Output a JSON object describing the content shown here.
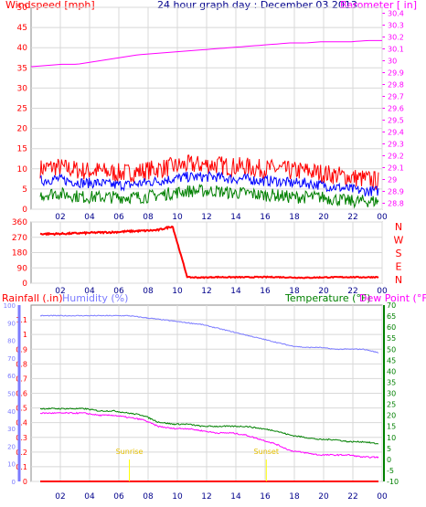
{
  "header": {
    "title": "24 hour graph day : December 03 2013",
    "left_label": "Windspeed [mph]",
    "right_label": "Barometer [ in]"
  },
  "colors": {
    "wind": "#ff0000",
    "gust": "#ff0000",
    "avg": "#0000ff",
    "green": "#008000",
    "baro": "#ff00ff",
    "dir": "#ff0000",
    "humidity": "#7b7bff",
    "temperature": "#008000",
    "dewpoint": "#ff00ff",
    "rain": "#ff0000",
    "grid": "#d8d8d8",
    "axis_blue": "#00008b"
  },
  "panel_bottom": {
    "rain_label": "Rainfall (.in)",
    "humidity_label": "Humidity (%)",
    "temp_label": "Temperature (°F)",
    "dew_label": "Dew Point (°F)"
  },
  "markers": [
    "Sunrise",
    "Sunset"
  ],
  "chart_data": [
    {
      "type": "line",
      "x_ticks": [
        "02",
        "04",
        "06",
        "08",
        "10",
        "12",
        "14",
        "16",
        "18",
        "20",
        "22",
        "00"
      ],
      "y_left_ticks": [
        "0",
        "5",
        "10",
        "15",
        "20",
        "25",
        "30",
        "35",
        "40",
        "45",
        "50"
      ],
      "ylim_left": [
        0,
        50
      ],
      "y_right_ticks": [
        "28.8",
        "28.9",
        "29",
        "29.1",
        "29.2",
        "29.3",
        "29.4",
        "29.5",
        "29.6",
        "29.7",
        "29.8",
        "29.9",
        "30",
        "30.1",
        "30.2",
        "30.3",
        "30.4"
      ],
      "ylim_right": [
        28.75,
        30.45
      ],
      "series": [
        {
          "axis": "left",
          "values": [
            10,
            10.5,
            10,
            9.5,
            9.5,
            9,
            9,
            9.5,
            10,
            10.5,
            11,
            11,
            11,
            10.5,
            10.5,
            10,
            10,
            9.5,
            9.5,
            9,
            8.5,
            8,
            7.5,
            7
          ]
        },
        {
          "axis": "left",
          "values": [
            7,
            7.5,
            7,
            6.5,
            6.5,
            6,
            6,
            6.5,
            7,
            7.5,
            8,
            8,
            8,
            7.5,
            7.5,
            7,
            7,
            6.5,
            6.5,
            6,
            5.5,
            5,
            4.5,
            4.5
          ]
        },
        {
          "axis": "left",
          "values": [
            3.5,
            4,
            3.5,
            3,
            3,
            3,
            3,
            3,
            3.5,
            4,
            4.5,
            4.5,
            4.5,
            4,
            4,
            3.5,
            3.5,
            3,
            3,
            3,
            2.5,
            2,
            2,
            2
          ]
        },
        {
          "axis": "right",
          "values": [
            29.95,
            29.96,
            29.97,
            29.97,
            29.99,
            30.01,
            30.03,
            30.05,
            30.06,
            30.07,
            30.08,
            30.09,
            30.1,
            30.11,
            30.12,
            30.13,
            30.14,
            30.15,
            30.15,
            30.16,
            30.16,
            30.16,
            30.17,
            30.17
          ]
        }
      ]
    },
    {
      "type": "line",
      "x_ticks": [
        "02",
        "04",
        "06",
        "08",
        "10",
        "12",
        "14",
        "16",
        "18",
        "20",
        "22",
        "00"
      ],
      "y_left_ticks": [
        "0",
        "90",
        "180",
        "270",
        "360"
      ],
      "ylim_left": [
        0,
        360
      ],
      "y_right_ticks": [
        "N",
        "W",
        "S",
        "E",
        "N"
      ],
      "series": [
        {
          "values": [
            290,
            290,
            292,
            295,
            298,
            300,
            305,
            308,
            312,
            335,
            35,
            33,
            36,
            35,
            35,
            36,
            36,
            34,
            32,
            34,
            35,
            36,
            35,
            36
          ]
        }
      ]
    },
    {
      "type": "line",
      "x_ticks": [
        "02",
        "04",
        "06",
        "08",
        "10",
        "12",
        "14",
        "16",
        "18",
        "20",
        "22",
        "00"
      ],
      "y_left_ticks": [
        "0",
        "0.1",
        "0.2",
        "0.3",
        "0.4",
        "0.5",
        "0.6",
        "0.7",
        "0.8",
        "0.9",
        "1",
        "1.1"
      ],
      "ylim_left": [
        0,
        1.2
      ],
      "y_hum_ticks": [
        "0",
        "10",
        "20",
        "30",
        "40",
        "50",
        "60",
        "70",
        "80",
        "90",
        "100"
      ],
      "ylim_hum": [
        0,
        100
      ],
      "y_right_ticks": [
        "-10",
        "-5",
        "0",
        "5",
        "10",
        "15",
        "20",
        "25",
        "30",
        "35",
        "40",
        "45",
        "50",
        "55",
        "60",
        "65",
        "70"
      ],
      "ylim_right": [
        -10,
        70
      ],
      "series": [
        {
          "axis": "humidity",
          "values": [
            94,
            94,
            94,
            94,
            94,
            94,
            94,
            93,
            92,
            91,
            90,
            89,
            87,
            85,
            83,
            81,
            79,
            77,
            76,
            76,
            75,
            75,
            75,
            73
          ]
        },
        {
          "axis": "temp",
          "values": [
            23,
            23,
            23,
            23,
            22,
            22,
            21,
            20,
            17,
            16,
            16,
            15,
            15,
            15,
            15,
            14,
            13,
            11,
            10,
            9,
            9,
            8,
            8,
            7
          ]
        },
        {
          "axis": "temp",
          "values": [
            21,
            21,
            21,
            21,
            20,
            20,
            19,
            18,
            15,
            14,
            14,
            13,
            12,
            12,
            11,
            9,
            7,
            4,
            3,
            2,
            2,
            2,
            1,
            1
          ]
        },
        {
          "axis": "rain",
          "values": [
            0,
            0,
            0,
            0,
            0,
            0,
            0,
            0,
            0,
            0,
            0,
            0,
            0,
            0,
            0,
            0,
            0,
            0,
            0,
            0,
            0,
            0,
            0,
            0
          ]
        }
      ]
    }
  ]
}
